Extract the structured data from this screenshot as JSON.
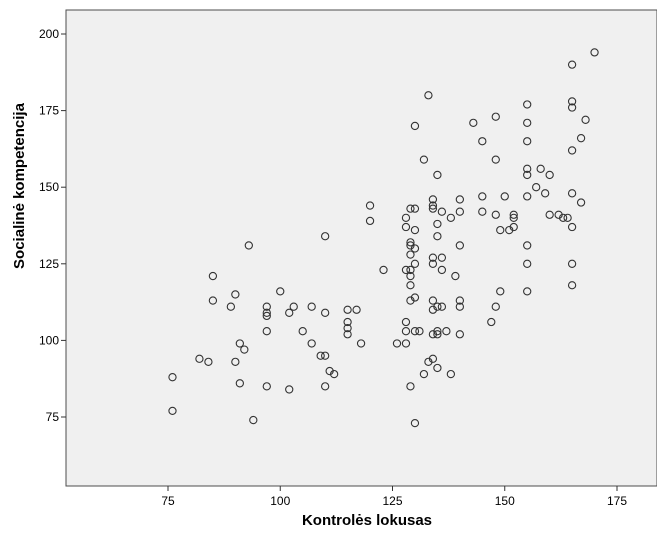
{
  "chart_data": {
    "type": "scatter",
    "title": "",
    "xlabel": "Kontrolės lokusas",
    "ylabel": "Socialinė kompetencija",
    "xlim": [
      60,
      190
    ],
    "ylim": [
      52,
      205
    ],
    "x_ticks": [
      75,
      100,
      125,
      150,
      175
    ],
    "y_ticks": [
      75,
      100,
      125,
      150,
      175,
      200
    ],
    "grid": false,
    "legend": "none",
    "colors": {
      "plot_background": "#f0f0f0",
      "marker": "#333333"
    },
    "series": [
      {
        "points": [
          [
            76,
            88
          ],
          [
            76,
            77
          ],
          [
            82,
            94
          ],
          [
            84,
            93
          ],
          [
            85,
            121
          ],
          [
            85,
            113
          ],
          [
            89,
            111
          ],
          [
            90,
            93
          ],
          [
            90,
            115
          ],
          [
            91,
            99
          ],
          [
            91,
            86
          ],
          [
            92,
            97
          ],
          [
            93,
            131
          ],
          [
            94,
            74
          ],
          [
            97,
            111
          ],
          [
            97,
            109
          ],
          [
            97,
            108
          ],
          [
            97,
            103
          ],
          [
            97,
            85
          ],
          [
            100,
            116
          ],
          [
            102,
            109
          ],
          [
            102,
            84
          ],
          [
            103,
            111
          ],
          [
            105,
            103
          ],
          [
            107,
            111
          ],
          [
            107,
            99
          ],
          [
            109,
            95
          ],
          [
            110,
            134
          ],
          [
            110,
            109
          ],
          [
            110,
            95
          ],
          [
            110,
            85
          ],
          [
            111,
            90
          ],
          [
            112,
            89
          ],
          [
            115,
            110
          ],
          [
            115,
            106
          ],
          [
            115,
            104
          ],
          [
            115,
            102
          ],
          [
            117,
            110
          ],
          [
            118,
            99
          ],
          [
            120,
            144
          ],
          [
            120,
            139
          ],
          [
            123,
            123
          ],
          [
            126,
            99
          ],
          [
            128,
            140
          ],
          [
            128,
            137
          ],
          [
            128,
            123
          ],
          [
            128,
            106
          ],
          [
            128,
            103
          ],
          [
            128,
            99
          ],
          [
            129,
            143
          ],
          [
            129,
            132
          ],
          [
            129,
            131
          ],
          [
            129,
            128
          ],
          [
            129,
            123
          ],
          [
            129,
            121
          ],
          [
            129,
            118
          ],
          [
            129,
            113
          ],
          [
            129,
            85
          ],
          [
            130,
            170
          ],
          [
            130,
            143
          ],
          [
            130,
            136
          ],
          [
            130,
            130
          ],
          [
            130,
            125
          ],
          [
            130,
            114
          ],
          [
            130,
            103
          ],
          [
            130,
            73
          ],
          [
            131,
            103
          ],
          [
            132,
            159
          ],
          [
            132,
            89
          ],
          [
            133,
            180
          ],
          [
            133,
            93
          ],
          [
            134,
            146
          ],
          [
            134,
            144
          ],
          [
            134,
            143
          ],
          [
            134,
            127
          ],
          [
            134,
            125
          ],
          [
            134,
            113
          ],
          [
            134,
            110
          ],
          [
            134,
            102
          ],
          [
            134,
            94
          ],
          [
            135,
            154
          ],
          [
            135,
            138
          ],
          [
            135,
            134
          ],
          [
            135,
            111
          ],
          [
            135,
            103
          ],
          [
            135,
            102
          ],
          [
            135,
            91
          ],
          [
            136,
            142
          ],
          [
            136,
            127
          ],
          [
            136,
            123
          ],
          [
            136,
            111
          ],
          [
            137,
            103
          ],
          [
            138,
            140
          ],
          [
            138,
            89
          ],
          [
            139,
            121
          ],
          [
            140,
            146
          ],
          [
            140,
            142
          ],
          [
            140,
            131
          ],
          [
            140,
            113
          ],
          [
            140,
            111
          ],
          [
            140,
            102
          ],
          [
            143,
            171
          ],
          [
            145,
            165
          ],
          [
            145,
            147
          ],
          [
            145,
            142
          ],
          [
            147,
            106
          ],
          [
            148,
            173
          ],
          [
            148,
            159
          ],
          [
            148,
            141
          ],
          [
            148,
            111
          ],
          [
            149,
            136
          ],
          [
            149,
            116
          ],
          [
            150,
            147
          ],
          [
            151,
            136
          ],
          [
            152,
            141
          ],
          [
            152,
            140
          ],
          [
            152,
            137
          ],
          [
            155,
            177
          ],
          [
            155,
            171
          ],
          [
            155,
            165
          ],
          [
            155,
            156
          ],
          [
            155,
            154
          ],
          [
            155,
            147
          ],
          [
            155,
            131
          ],
          [
            155,
            125
          ],
          [
            155,
            116
          ],
          [
            157,
            150
          ],
          [
            158,
            156
          ],
          [
            159,
            148
          ],
          [
            160,
            154
          ],
          [
            160,
            141
          ],
          [
            162,
            141
          ],
          [
            163,
            140
          ],
          [
            164,
            140
          ],
          [
            165,
            190
          ],
          [
            165,
            178
          ],
          [
            165,
            176
          ],
          [
            165,
            162
          ],
          [
            165,
            148
          ],
          [
            165,
            137
          ],
          [
            165,
            125
          ],
          [
            165,
            118
          ],
          [
            167,
            166
          ],
          [
            167,
            145
          ],
          [
            168,
            172
          ],
          [
            170,
            194
          ]
        ]
      }
    ]
  }
}
